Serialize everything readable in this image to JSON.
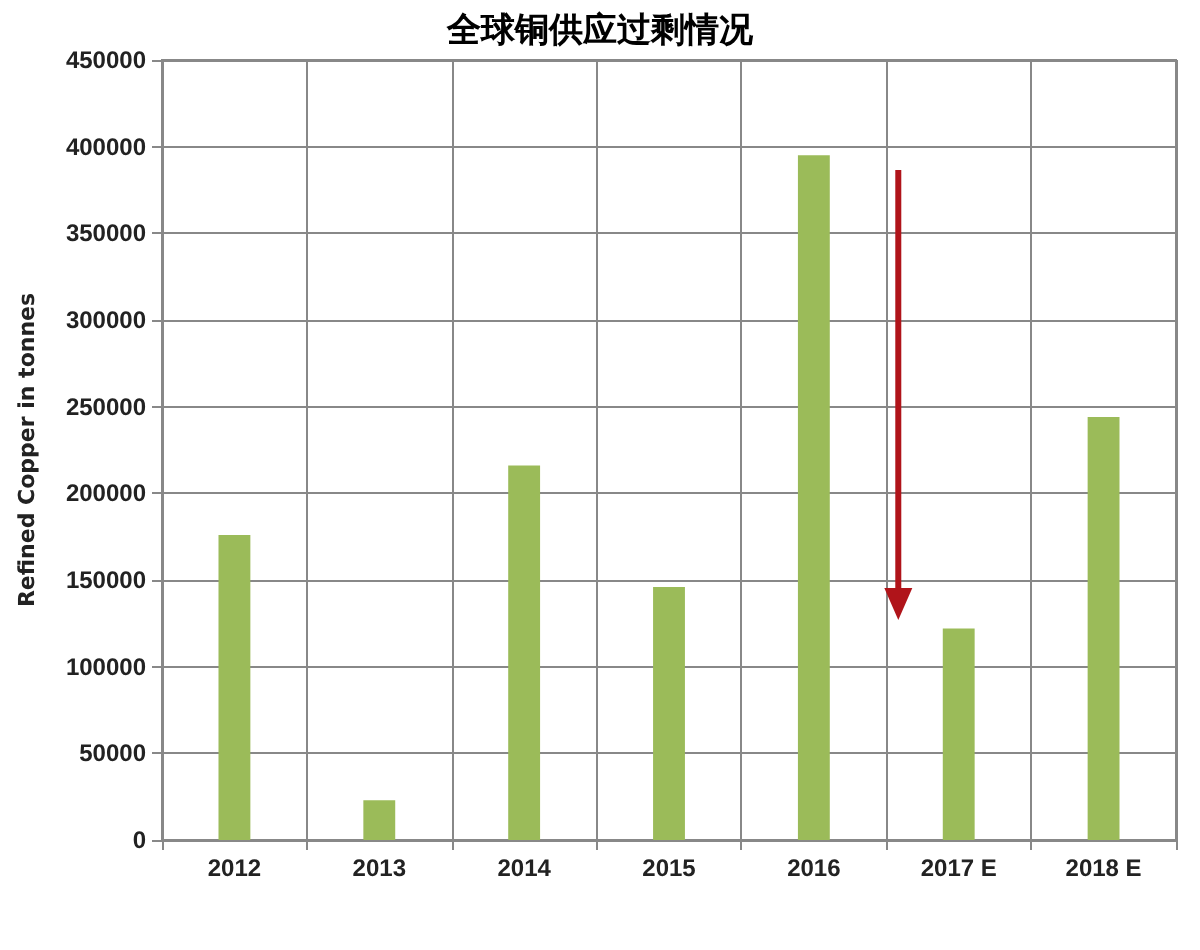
{
  "chart_data": {
    "type": "bar",
    "title": "全球铜供应过剩情况",
    "ylabel": "Refined Copper in tonnes",
    "categories": [
      "2012",
      "2013",
      "2014",
      "2015",
      "2016",
      "2017 E",
      "2018 E"
    ],
    "values": [
      176000,
      23000,
      216000,
      146000,
      395000,
      122000,
      244000
    ],
    "color": "#9bbb59",
    "ylim": [
      0,
      450000
    ],
    "yticks": [
      0,
      50000,
      100000,
      150000,
      200000,
      250000,
      300000,
      350000,
      400000,
      450000
    ],
    "grid": true
  }
}
